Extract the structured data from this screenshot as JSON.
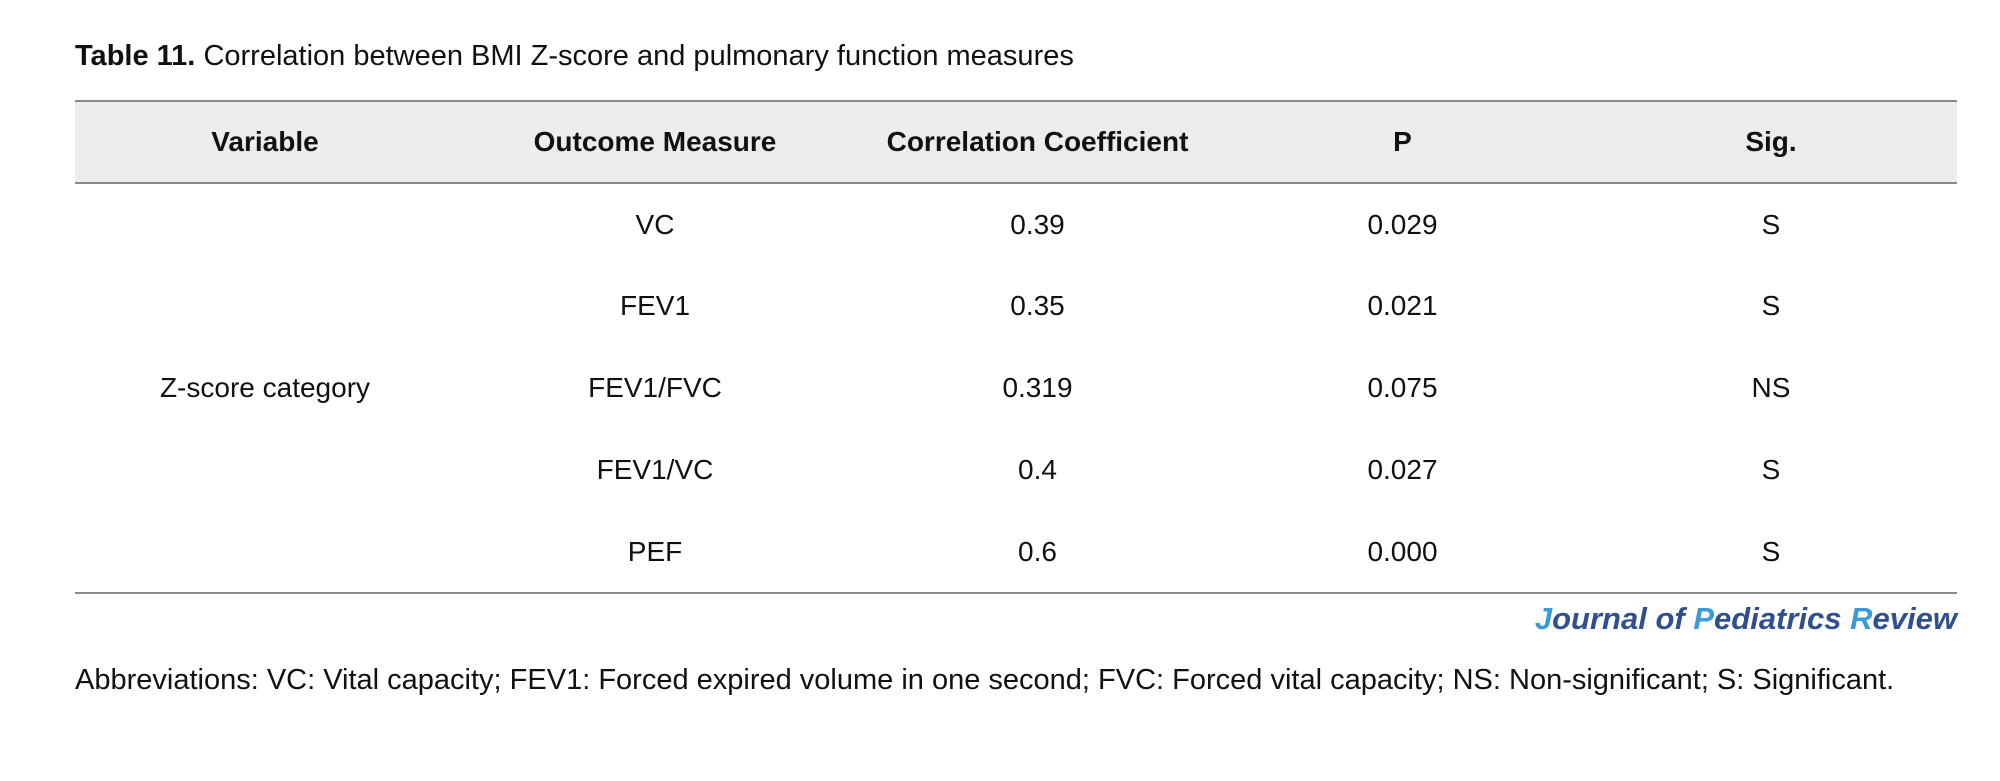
{
  "caption": {
    "label": "Table 11.",
    "text": "Correlation between BMI Z-score and pulmonary function measures"
  },
  "table": {
    "headers": [
      "Variable",
      "Outcome Measure",
      "Correlation Coefficient",
      "P",
      "Sig."
    ],
    "variable": "Z-score category",
    "rows": [
      {
        "measure": "VC",
        "coefficient": "0.39",
        "p": "0.029",
        "sig": "S"
      },
      {
        "measure": "FEV1",
        "coefficient": "0.35",
        "p": "0.021",
        "sig": "S"
      },
      {
        "measure": "FEV1/FVC",
        "coefficient": "0.319",
        "p": "0.075",
        "sig": "NS"
      },
      {
        "measure": "FEV1/VC",
        "coefficient": "0.4",
        "p": "0.027",
        "sig": "S"
      },
      {
        "measure": "PEF",
        "coefficient": "0.6",
        "p": "0.000",
        "sig": "S"
      }
    ]
  },
  "journal": {
    "parts": [
      "J",
      "ournal of ",
      "P",
      "ediatrics ",
      "R",
      "eview"
    ],
    "colors": {
      "main": "#2f4f8f",
      "highlight": "#3b9bd6"
    }
  },
  "footnote": "Abbreviations: VC: Vital capacity; FEV1: Forced expired volume in one second; FVC: Forced vital capacity; NS: Non-significant; S: Significant."
}
